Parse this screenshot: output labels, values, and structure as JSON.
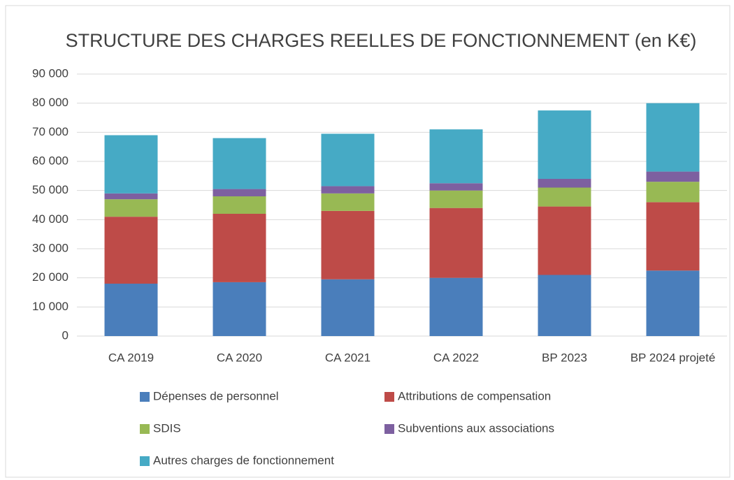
{
  "chart_data": {
    "type": "stacked_bar",
    "title": "STRUCTURE DES CHARGES REELLES DE FONCTIONNEMENT (en K€)",
    "categories": [
      "CA 2019",
      "CA 2020",
      "CA 2021",
      "CA 2022",
      "BP 2023",
      "BP 2024 projeté"
    ],
    "series": [
      {
        "name": "Dépenses de personnel",
        "color": "#4a7ebb",
        "values": [
          18000,
          18500,
          19500,
          20000,
          21000,
          22500
        ]
      },
      {
        "name": "Attributions de compensation",
        "color": "#be4b48",
        "values": [
          23000,
          23500,
          23500,
          24000,
          23500,
          23500
        ]
      },
      {
        "name": "SDIS",
        "color": "#98b954",
        "values": [
          6000,
          6000,
          6000,
          6000,
          6500,
          7000
        ]
      },
      {
        "name": "Subventions aux associations",
        "color": "#7d60a0",
        "values": [
          2000,
          2500,
          2500,
          2500,
          3000,
          3500
        ]
      },
      {
        "name": "Autres charges de fonctionnement",
        "color": "#46aac5",
        "values": [
          20000,
          17500,
          18000,
          18500,
          23500,
          23500
        ]
      }
    ],
    "ylim": [
      0,
      90000
    ],
    "yticks": [
      0,
      {
        "value": 10000,
        "label": "10 000"
      },
      {
        "value": 20000,
        "label": "20 000"
      },
      {
        "value": 30000,
        "label": "30 000"
      },
      {
        "value": 40000,
        "label": "40 000"
      },
      {
        "value": 50000,
        "label": "50 000"
      },
      {
        "value": 60000,
        "label": "60 000"
      },
      {
        "value": 70000,
        "label": "70 000"
      },
      {
        "value": 80000,
        "label": "80 000"
      },
      {
        "value": 90000,
        "label": "90 000"
      }
    ],
    "grid": true,
    "legend": "bottom"
  }
}
